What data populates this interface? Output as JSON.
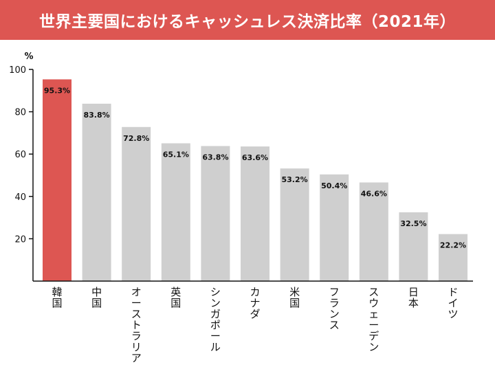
{
  "header": {
    "title": "世界主要国におけるキャッシュレス決済比率（2021年）"
  },
  "colors": {
    "title_bg": "#dd5652",
    "highlight_bar": "#dd5652",
    "bar": "#cfcfcf",
    "axis": "#111111"
  },
  "chart_data": {
    "type": "bar",
    "title": "世界主要国におけるキャッシュレス決済比率（2021年）",
    "ylabel": "%",
    "xlabel": "",
    "ylim": [
      0,
      100
    ],
    "yticks": [
      20,
      40,
      60,
      80,
      100
    ],
    "grid": false,
    "categories": [
      "韓国",
      "中国",
      "オーストラリア",
      "英国",
      "シンガポール",
      "カナダ",
      "米国",
      "フランス",
      "スウェーデン",
      "日本",
      "ドイツ"
    ],
    "values": [
      95.3,
      83.8,
      72.8,
      65.1,
      63.8,
      63.6,
      53.2,
      50.4,
      46.6,
      32.5,
      22.2
    ],
    "value_labels": [
      "95.3%",
      "83.8%",
      "72.8%",
      "65.1%",
      "63.8%",
      "63.6%",
      "53.2%",
      "50.4%",
      "46.6%",
      "32.5%",
      "22.2%"
    ],
    "highlight_index": 0
  }
}
